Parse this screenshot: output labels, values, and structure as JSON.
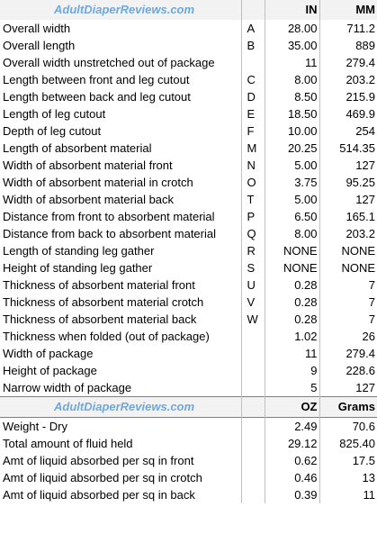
{
  "brand": "AdultDiaperReviews.com",
  "headers": {
    "in": "IN",
    "mm": "MM"
  },
  "dimensions": [
    {
      "label": "Overall width",
      "code": "A",
      "in": "28.00",
      "mm": "711.2"
    },
    {
      "label": "Overall length",
      "code": "B",
      "in": "35.00",
      "mm": "889"
    },
    {
      "label": "Overall width unstretched out of package",
      "code": "",
      "in": "11",
      "mm": "279.4"
    },
    {
      "label": "Length between front and leg cutout",
      "code": "C",
      "in": "8.00",
      "mm": "203.2"
    },
    {
      "label": "Length between back and leg cutout",
      "code": "D",
      "in": "8.50",
      "mm": "215.9"
    },
    {
      "label": "Length of leg cutout",
      "code": "E",
      "in": "18.50",
      "mm": "469.9"
    },
    {
      "label": "Depth of leg cutout",
      "code": "F",
      "in": "10.00",
      "mm": "254"
    },
    {
      "label": "Length of absorbent material",
      "code": "M",
      "in": "20.25",
      "mm": "514.35"
    },
    {
      "label": "Width of absorbent material front",
      "code": "N",
      "in": "5.00",
      "mm": "127"
    },
    {
      "label": "Width of absorbent material in crotch",
      "code": "O",
      "in": "3.75",
      "mm": "95.25"
    },
    {
      "label": "Width of absorbent material back",
      "code": "T",
      "in": "5.00",
      "mm": "127"
    },
    {
      "label": "Distance from front to absorbent material",
      "code": "P",
      "in": "6.50",
      "mm": "165.1"
    },
    {
      "label": "Distance from back to absorbent material",
      "code": "Q",
      "in": "8.00",
      "mm": "203.2"
    },
    {
      "label": "Length of standing leg gather",
      "code": "R",
      "in": "NONE",
      "mm": "NONE"
    },
    {
      "label": "Height of standing leg gather",
      "code": "S",
      "in": "NONE",
      "mm": "NONE"
    },
    {
      "label": "Thickness of absorbent material front",
      "code": "U",
      "in": "0.28",
      "mm": "7"
    },
    {
      "label": "Thickness of absorbent material crotch",
      "code": "V",
      "in": "0.28",
      "mm": "7"
    },
    {
      "label": "Thickness of absorbent material back",
      "code": "W",
      "in": "0.28",
      "mm": "7"
    },
    {
      "label": "Thickness when folded (out of package)",
      "code": "",
      "in": "1.02",
      "mm": "26"
    },
    {
      "label": "Width of package",
      "code": "",
      "in": "11",
      "mm": "279.4"
    },
    {
      "label": "Height of package",
      "code": "",
      "in": "9",
      "mm": "228.6"
    },
    {
      "label": "Narrow width of package",
      "code": "",
      "in": "5",
      "mm": "127"
    }
  ],
  "weight_headers": {
    "oz": "OZ",
    "grams": "Grams"
  },
  "weights": [
    {
      "label": "Weight - Dry",
      "oz": "2.49",
      "grams": "70.6"
    },
    {
      "label": "Total amount of fluid held",
      "oz": "29.12",
      "grams": "825.40"
    },
    {
      "label": "Amt of liquid absorbed per sq in front",
      "oz": "0.62",
      "grams": "17.5"
    },
    {
      "label": "Amt of liquid absorbed per sq in crotch",
      "oz": "0.46",
      "grams": "13"
    },
    {
      "label": "Amt of liquid absorbed per sq in back",
      "oz": "0.39",
      "grams": "11"
    }
  ]
}
